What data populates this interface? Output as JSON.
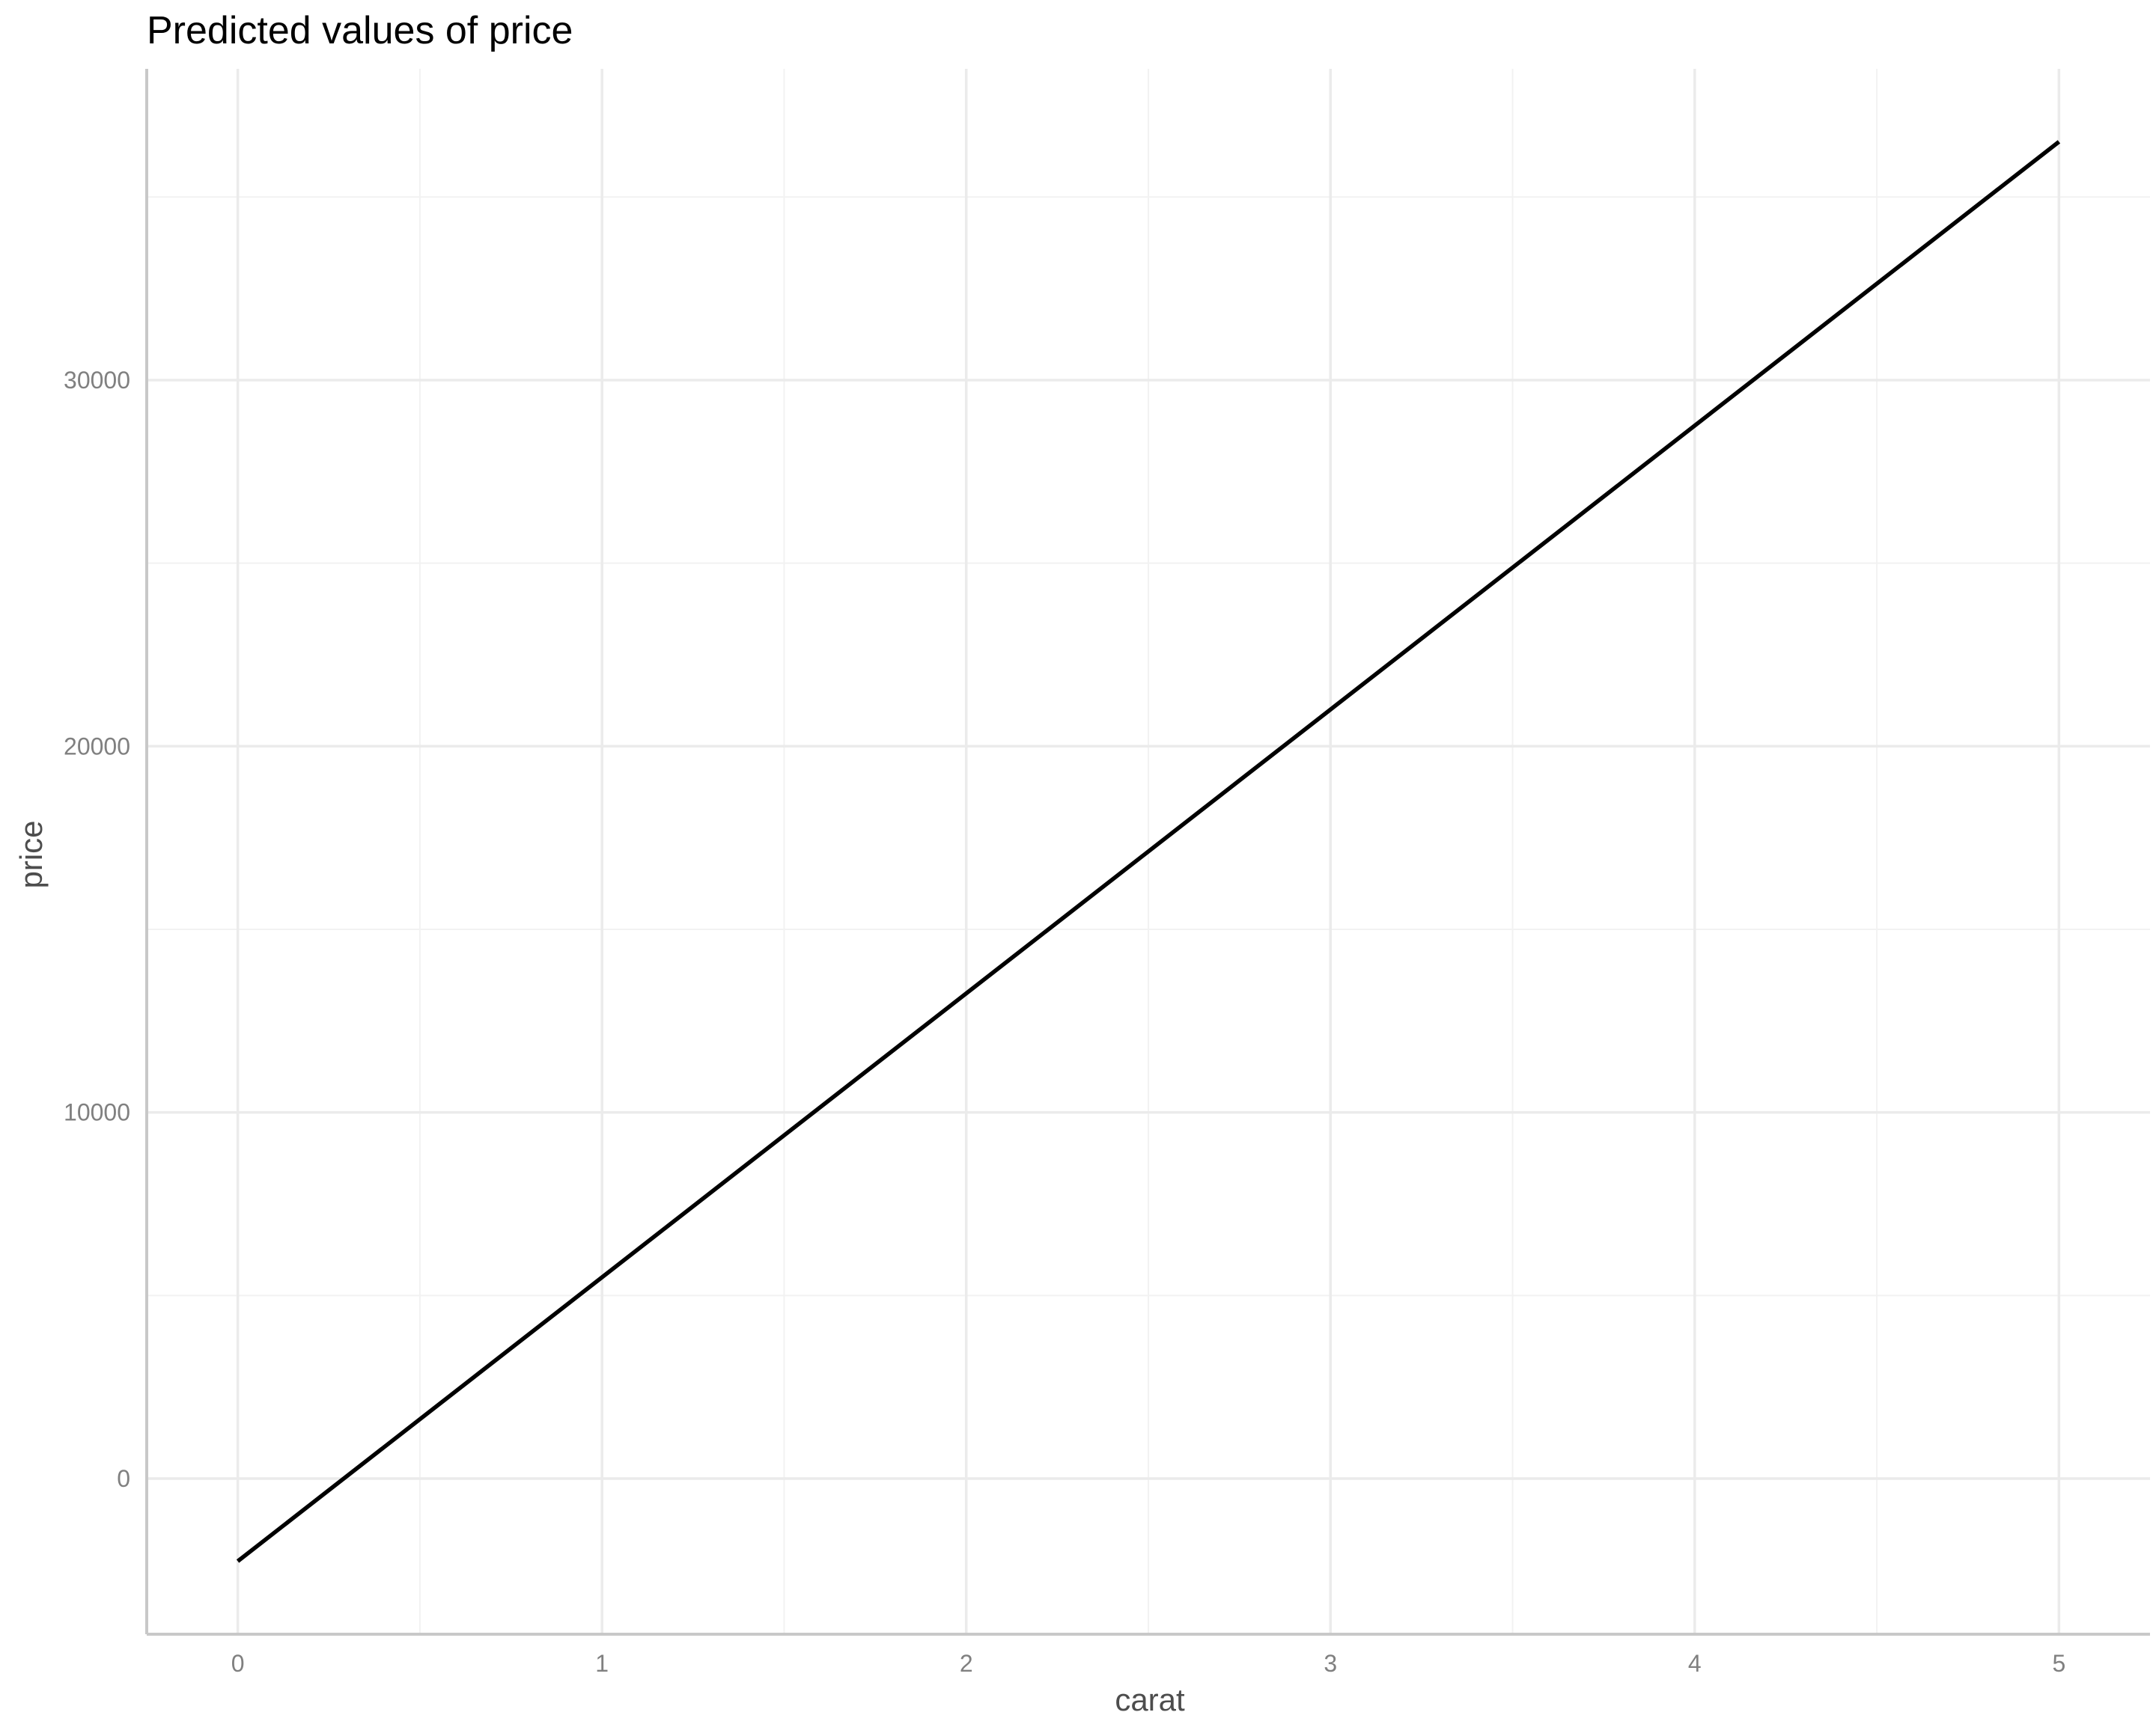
{
  "chart_data": {
    "type": "line",
    "title": "Predicted values of price",
    "xlabel": "carat",
    "ylabel": "price",
    "xlim": [
      -0.25,
      5.25
    ],
    "ylim": [
      -4250,
      38500
    ],
    "x_ticks": [
      0,
      1,
      2,
      3,
      4,
      5
    ],
    "x_tick_labels": [
      "0",
      "1",
      "2",
      "3",
      "4",
      "5"
    ],
    "x_minor_ticks": [
      0.5,
      1.5,
      2.5,
      3.5,
      4.5
    ],
    "y_ticks": [
      0,
      10000,
      20000,
      30000
    ],
    "y_tick_labels": [
      "0",
      "10000",
      "20000",
      "30000"
    ],
    "y_minor_ticks": [
      5000,
      15000,
      25000,
      35000
    ],
    "grid": true,
    "legend": "none",
    "series": [
      {
        "color": "#000000",
        "x": [
          0,
          5
        ],
        "y": [
          -2256,
          36509
        ]
      }
    ]
  }
}
